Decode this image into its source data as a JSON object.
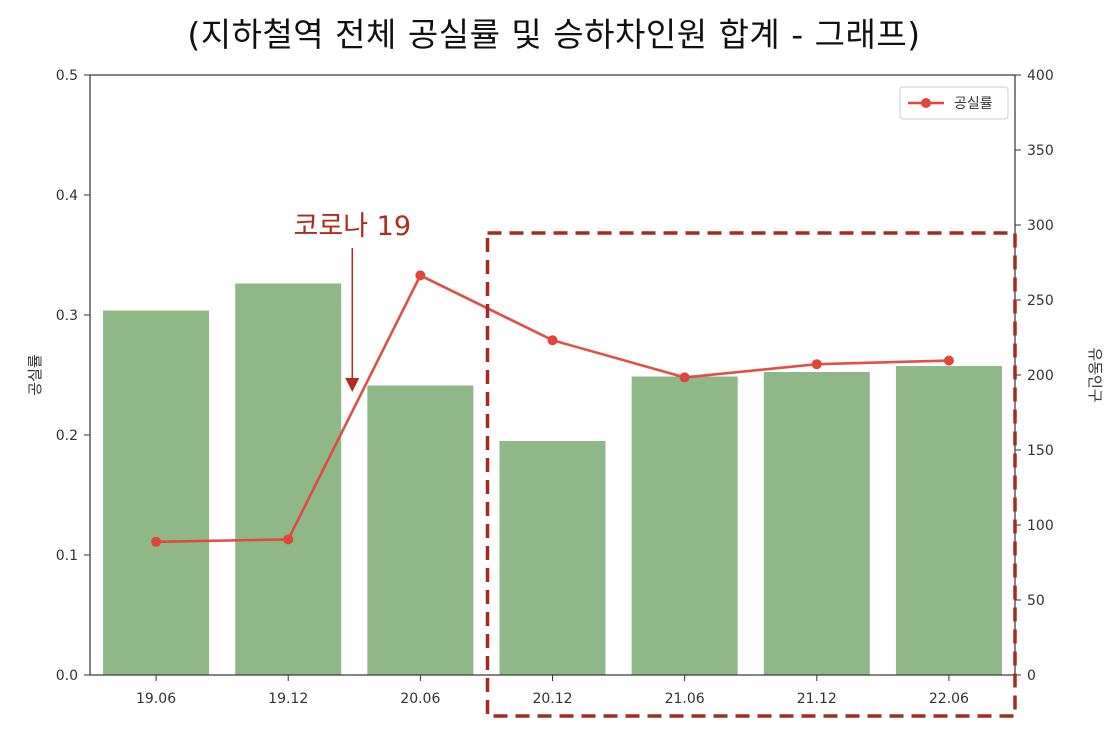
{
  "title": "(지하철역 전체 공실률 및 승하차인원 합계 - 그래프)",
  "chart_data": {
    "type": "bar",
    "categories": [
      "19.06",
      "19.12",
      "20.06",
      "20.12",
      "21.06",
      "21.12",
      "22.06"
    ],
    "series": [
      {
        "name": "유동인구",
        "type": "bar",
        "axis": "right",
        "color": "#8fb787",
        "values": [
          243,
          261,
          193,
          156,
          199,
          202,
          206
        ]
      },
      {
        "name": "공실률",
        "type": "line",
        "axis": "left",
        "color": "#e0463c",
        "values": [
          0.111,
          0.113,
          0.333,
          0.279,
          0.248,
          0.259,
          0.262
        ]
      }
    ],
    "ylabel_left": "공실률",
    "ylabel_right": "유동인구",
    "ylim_left": [
      0,
      0.5
    ],
    "ylim_right": [
      0,
      400
    ],
    "yticks_left": [
      "0.0",
      "0.1",
      "0.2",
      "0.3",
      "0.4",
      "0.5"
    ],
    "yticks_right": [
      "0",
      "50",
      "100",
      "150",
      "200",
      "250",
      "300",
      "350",
      "400"
    ],
    "legend": {
      "placement": "top-right",
      "entries": [
        "공실률"
      ]
    },
    "annotation": {
      "text": "코로나 19",
      "color": "#b22a1f"
    },
    "highlight_box": {
      "from_category": "20.12",
      "to_category": "22.06",
      "color": "#a52a22",
      "style": "dashed"
    },
    "grid": false
  }
}
